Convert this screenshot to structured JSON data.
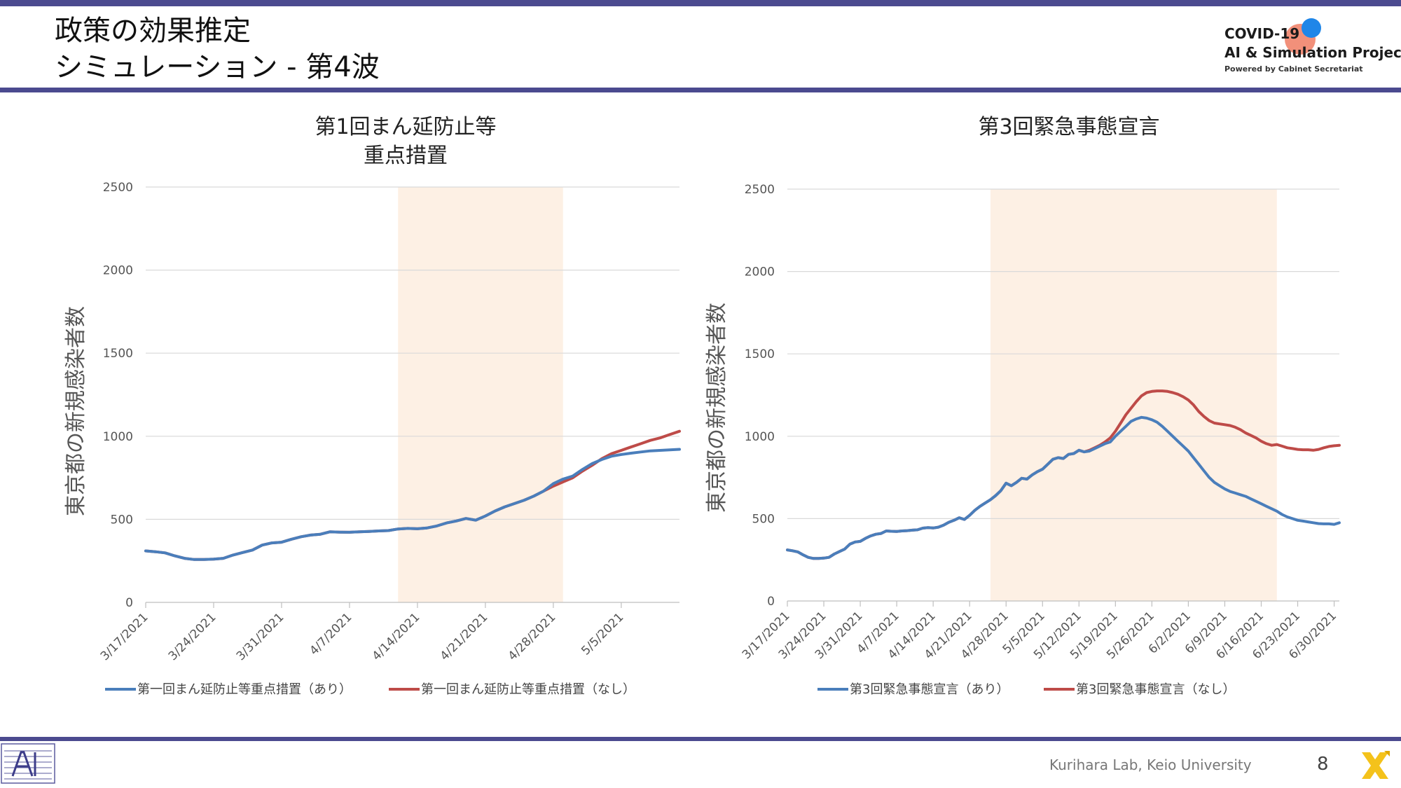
{
  "slide": {
    "title_line1": "政策の効果推定",
    "title_line2": "シミュレーション - 第4波",
    "footer": "Kurihara Lab, Keio University",
    "page_number": "8"
  },
  "logo": {
    "line1": "COVID-19",
    "line2": "AI & Simulation Project",
    "line3": "Powered by Cabinet Secretariat"
  },
  "colors": {
    "with": "#4a7ebb",
    "without": "#be4b48",
    "shade": "#fdf0e4",
    "accent_bar": "#4b4a8f"
  },
  "chart_data": [
    {
      "type": "line",
      "title": [
        "第1回まん延防止等",
        "重点措置"
      ],
      "ylabel": "東京都の新規感染者数",
      "ylim": [
        0,
        2500
      ],
      "yticks": [
        0,
        500,
        1000,
        1500,
        2000,
        2500
      ],
      "start_date": "2021-03-17",
      "n_days": 56,
      "xticks": [
        "3/17/2021",
        "3/24/2021",
        "3/31/2021",
        "4/7/2021",
        "4/14/2021",
        "4/21/2021",
        "4/28/2021",
        "5/5/2021"
      ],
      "shaded_period": [
        "2021-04-12",
        "2021-04-29"
      ],
      "grid": true,
      "legend_position": "bottom",
      "series": [
        {
          "name": "第一回まん延防止等重点措置（あり）",
          "color": "#4a7ebb",
          "values": [
            310,
            305,
            298,
            280,
            265,
            258,
            258,
            260,
            265,
            285,
            300,
            315,
            345,
            358,
            362,
            380,
            395,
            405,
            410,
            425,
            423,
            422,
            425,
            427,
            430,
            432,
            442,
            445,
            443,
            448,
            460,
            478,
            490,
            505,
            495,
            520,
            550,
            575,
            595,
            615,
            640,
            670,
            715,
            742,
            760,
            800,
            835,
            860,
            880,
            890,
            898,
            905,
            912,
            915,
            918,
            921
          ]
        },
        {
          "name": "第一回まん延防止等重点措置（なし）",
          "color": "#be4b48",
          "values": [
            310,
            305,
            298,
            280,
            265,
            258,
            258,
            260,
            265,
            285,
            300,
            315,
            345,
            358,
            362,
            380,
            395,
            405,
            410,
            425,
            423,
            422,
            425,
            427,
            430,
            432,
            442,
            445,
            443,
            448,
            460,
            478,
            490,
            505,
            495,
            520,
            550,
            575,
            595,
            615,
            640,
            670,
            700,
            725,
            750,
            790,
            825,
            865,
            895,
            915,
            935,
            955,
            975,
            990,
            1010,
            1030
          ]
        }
      ]
    },
    {
      "type": "line",
      "title": [
        "第3回緊急事態宣言"
      ],
      "ylabel": "東京都の新規感染者数",
      "ylim": [
        0,
        2500
      ],
      "yticks": [
        0,
        500,
        1000,
        1500,
        2000,
        2500
      ],
      "start_date": "2021-03-17",
      "n_days": 107,
      "xticks": [
        "3/17/2021",
        "3/24/2021",
        "3/31/2021",
        "4/7/2021",
        "4/14/2021",
        "4/21/2021",
        "4/28/2021",
        "5/5/2021",
        "5/12/2021",
        "5/19/2021",
        "5/26/2021",
        "6/2/2021",
        "6/9/2021",
        "6/16/2021",
        "6/23/2021",
        "6/30/2021"
      ],
      "shaded_period": [
        "2021-04-25",
        "2021-06-19"
      ],
      "grid": true,
      "legend_position": "bottom",
      "series": [
        {
          "name": "第3回緊急事態宣言（あり）",
          "color": "#4a7ebb",
          "values": [
            310,
            305,
            298,
            280,
            265,
            258,
            258,
            260,
            265,
            285,
            300,
            315,
            345,
            358,
            362,
            380,
            395,
            405,
            410,
            425,
            423,
            422,
            425,
            427,
            430,
            432,
            442,
            445,
            443,
            448,
            460,
            478,
            490,
            505,
            495,
            520,
            550,
            575,
            595,
            615,
            640,
            670,
            715,
            700,
            720,
            745,
            740,
            765,
            785,
            800,
            830,
            860,
            870,
            865,
            890,
            895,
            915,
            905,
            910,
            925,
            940,
            955,
            965,
            1000,
            1030,
            1060,
            1090,
            1105,
            1115,
            1110,
            1100,
            1085,
            1060,
            1030,
            1000,
            970,
            940,
            910,
            870,
            830,
            790,
            750,
            720,
            700,
            680,
            665,
            655,
            645,
            635,
            620,
            605,
            590,
            575,
            560,
            545,
            525,
            510,
            500,
            490,
            485,
            480,
            475,
            470,
            468,
            468,
            465,
            475
          ]
        },
        {
          "name": "第3回緊急事態宣言（なし）",
          "color": "#be4b48",
          "values": [
            310,
            305,
            298,
            280,
            265,
            258,
            258,
            260,
            265,
            285,
            300,
            315,
            345,
            358,
            362,
            380,
            395,
            405,
            410,
            425,
            423,
            422,
            425,
            427,
            430,
            432,
            442,
            445,
            443,
            448,
            460,
            478,
            490,
            505,
            495,
            520,
            550,
            575,
            595,
            615,
            640,
            670,
            715,
            700,
            720,
            745,
            740,
            765,
            785,
            800,
            830,
            860,
            870,
            865,
            890,
            895,
            915,
            905,
            915,
            930,
            945,
            965,
            990,
            1030,
            1080,
            1130,
            1170,
            1210,
            1245,
            1265,
            1272,
            1275,
            1275,
            1272,
            1265,
            1255,
            1240,
            1220,
            1190,
            1150,
            1120,
            1095,
            1080,
            1075,
            1070,
            1065,
            1055,
            1040,
            1020,
            1005,
            990,
            970,
            955,
            945,
            950,
            940,
            930,
            925,
            920,
            918,
            918,
            915,
            920,
            930,
            938,
            942,
            945
          ]
        }
      ]
    }
  ]
}
